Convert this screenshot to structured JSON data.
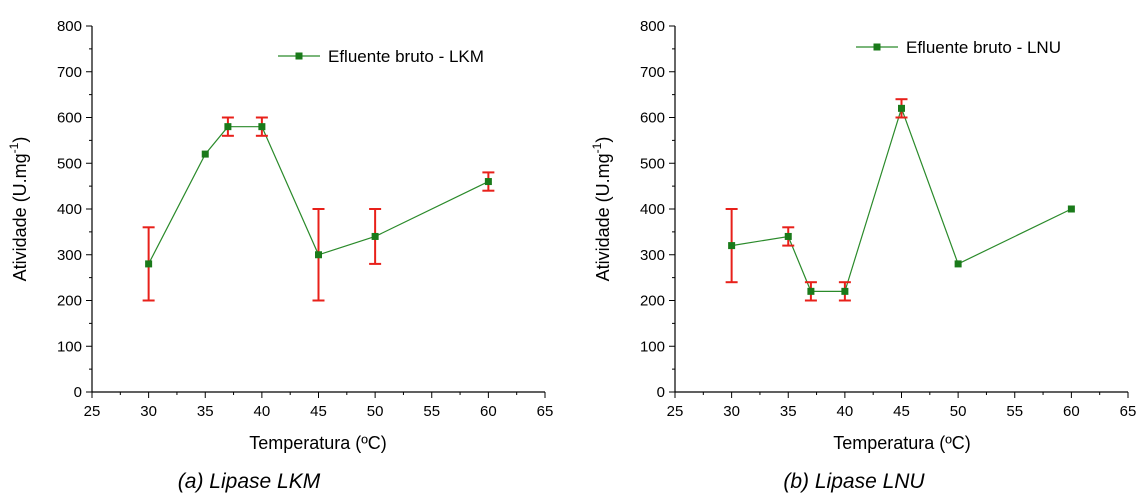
{
  "colors": {
    "series": "#2a8a2a",
    "marker": "#1a7a1a",
    "error_bar": "#e8201a",
    "axis": "#000000"
  },
  "chart_data": [
    {
      "type": "line",
      "caption": "(a) Lipase LKM",
      "xlabel": "Temperatura (ºC)",
      "ylabel": "Atividade (U.mg",
      "ylabel_sup": "-1",
      "ylabel_close": ")",
      "xlim": [
        25,
        65
      ],
      "ylim": [
        0,
        800
      ],
      "xticks": [
        25,
        30,
        35,
        40,
        45,
        50,
        55,
        60,
        65
      ],
      "yticks": [
        0,
        100,
        200,
        300,
        400,
        500,
        600,
        700,
        800
      ],
      "legend_position": "top-right",
      "series": [
        {
          "name": "Efluente bruto - LKM",
          "points": [
            {
              "x": 30,
              "y": 280,
              "err": 80
            },
            {
              "x": 35,
              "y": 520,
              "err": 0
            },
            {
              "x": 37,
              "y": 580,
              "err": 20
            },
            {
              "x": 40,
              "y": 580,
              "err": 20
            },
            {
              "x": 45,
              "y": 300,
              "err": 100
            },
            {
              "x": 50,
              "y": 340,
              "err": 60
            },
            {
              "x": 60,
              "y": 460,
              "err": 20
            }
          ]
        }
      ]
    },
    {
      "type": "line",
      "caption": "(b) Lipase LNU",
      "xlabel": "Temperatura (ºC)",
      "ylabel": "Atividade (U.mg",
      "ylabel_sup": "-1",
      "ylabel_close": ")",
      "xlim": [
        25,
        65
      ],
      "ylim": [
        0,
        800
      ],
      "xticks": [
        25,
        30,
        35,
        40,
        45,
        50,
        55,
        60,
        65
      ],
      "yticks": [
        0,
        100,
        200,
        300,
        400,
        500,
        600,
        700,
        800
      ],
      "legend_position": "top-right",
      "series": [
        {
          "name": "Efluente bruto - LNU",
          "points": [
            {
              "x": 30,
              "y": 320,
              "err": 80
            },
            {
              "x": 35,
              "y": 340,
              "err": 20
            },
            {
              "x": 37,
              "y": 220,
              "err": 20
            },
            {
              "x": 40,
              "y": 220,
              "err": 20
            },
            {
              "x": 45,
              "y": 620,
              "err": 20
            },
            {
              "x": 50,
              "y": 280,
              "err": 0
            },
            {
              "x": 60,
              "y": 400,
              "err": 0
            }
          ]
        }
      ]
    }
  ]
}
